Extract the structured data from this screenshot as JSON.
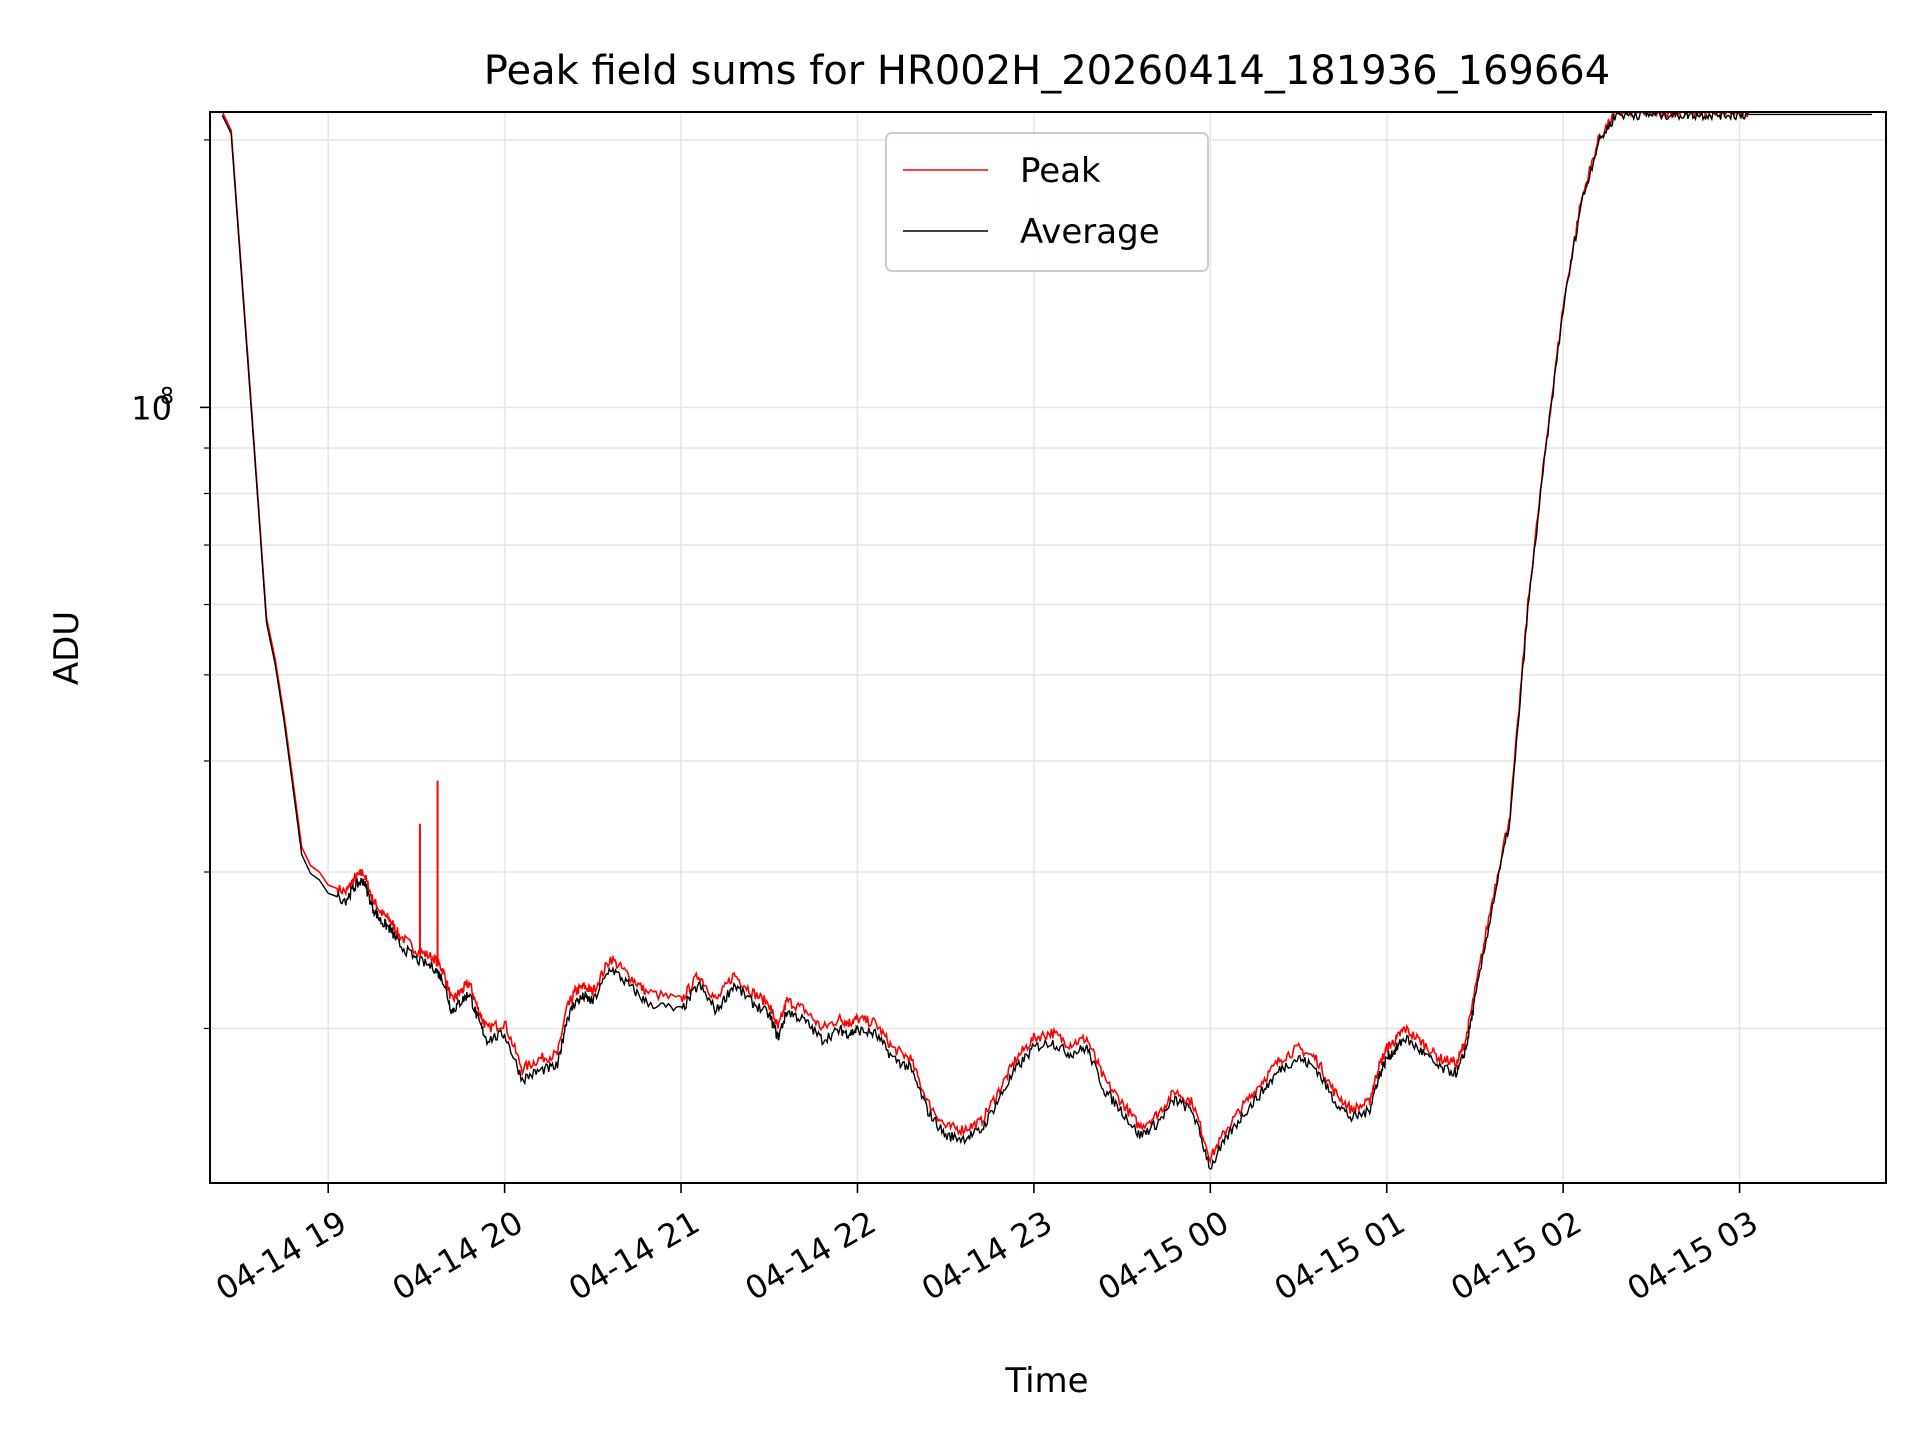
{
  "chart_data": {
    "type": "line",
    "title": "Peak field sums for HR002H_20260414_181936_169664",
    "xlabel": "Time",
    "ylabel": "ADU",
    "y_scale": "log",
    "ylim": [
      13400000,
      215000000
    ],
    "xlim": [
      -0.67,
      8.83
    ],
    "x_unit": "hours since 04-14 19:00",
    "x_tick_values": [
      0,
      1,
      2,
      3,
      4,
      5,
      6,
      7,
      8
    ],
    "x_tick_labels": [
      "04-14 19",
      "04-14 20",
      "04-14 21",
      "04-14 22",
      "04-14 23",
      "04-15 00",
      "04-15 01",
      "04-15 02",
      "04-15 03"
    ],
    "y_major_tick_values": [
      100000000
    ],
    "y_major_tick_labels": [
      {
        "base": "10",
        "exp": "8"
      }
    ],
    "y_minor_tick_values": [
      20000000,
      30000000,
      40000000,
      50000000,
      60000000,
      70000000,
      80000000,
      90000000,
      200000000
    ],
    "grid": true,
    "legend_position": "top-center",
    "colors": {
      "peak": "#ff0000",
      "average": "#000000",
      "grid": "#e6e6e6"
    },
    "spikes": [
      {
        "x": 0.52,
        "y": 34000000
      },
      {
        "x": 0.62,
        "y": 38000000
      }
    ],
    "series": [
      {
        "name": "Peak",
        "color": "#ff0000",
        "x": [
          -0.6,
          -0.55,
          -0.5,
          -0.45,
          -0.4,
          -0.35,
          -0.3,
          -0.25,
          -0.2,
          -0.15,
          -0.1,
          -0.05,
          0,
          0.1,
          0.15,
          0.2,
          0.25,
          0.3,
          0.35,
          0.4,
          0.5,
          0.6,
          0.65,
          0.7,
          0.75,
          0.8,
          0.85,
          0.9,
          1.0,
          1.1,
          1.2,
          1.3,
          1.35,
          1.4,
          1.45,
          1.5,
          1.6,
          1.7,
          1.8,
          2.0,
          2.1,
          2.2,
          2.3,
          2.4,
          2.5,
          2.55,
          2.6,
          2.7,
          2.8,
          2.9,
          2.95,
          3.0,
          3.1,
          3.2,
          3.3,
          3.4,
          3.5,
          3.6,
          3.7,
          3.8,
          3.9,
          4.0,
          4.1,
          4.2,
          4.3,
          4.4,
          4.5,
          4.6,
          4.7,
          4.8,
          4.9,
          5.0,
          5.1,
          5.2,
          5.3,
          5.4,
          5.5,
          5.6,
          5.7,
          5.8,
          5.9,
          5.95,
          6.0,
          6.05,
          6.1,
          6.2,
          6.3,
          6.4,
          6.45,
          6.5,
          6.6,
          6.7,
          6.8,
          6.9,
          7.0,
          7.1,
          7.2,
          7.3,
          7.4,
          7.5,
          7.6,
          7.7,
          7.8,
          7.9,
          8.0,
          8.1,
          8.15,
          8.2,
          8.3,
          8.4,
          8.5,
          8.6,
          8.7,
          8.75
        ],
        "y": [
          215000000,
          205000000,
          150000000,
          110000000,
          80000000,
          58000000,
          52000000,
          45000000,
          38000000,
          32000000,
          30500000,
          30000000,
          29000000,
          28500000,
          29500000,
          30000000,
          28000000,
          27000000,
          26500000,
          25500000,
          24500000,
          24000000,
          23300000,
          21500000,
          22000000,
          22500000,
          21000000,
          20000000,
          20300000,
          18000000,
          18500000,
          18700000,
          21000000,
          22000000,
          22300000,
          22000000,
          24000000,
          23000000,
          22000000,
          21500000,
          23000000,
          21500000,
          23000000,
          22000000,
          21300000,
          20000000,
          21500000,
          21000000,
          20000000,
          20500000,
          20300000,
          20500000,
          20300000,
          19000000,
          18500000,
          16500000,
          15500000,
          15400000,
          15700000,
          17000000,
          18500000,
          19500000,
          19800000,
          19200000,
          19500000,
          17500000,
          16500000,
          15500000,
          16000000,
          17000000,
          16500000,
          14300000,
          15500000,
          16500000,
          17500000,
          18500000,
          19000000,
          18500000,
          17000000,
          16200000,
          16500000,
          18000000,
          19000000,
          19400000,
          20000000,
          19300000,
          18500000,
          18300000,
          19500000,
          22000000,
          28000000,
          35000000,
          60000000,
          90000000,
          130000000,
          170000000,
          200000000,
          215000000,
          215000000,
          215000000,
          215000000,
          215000000,
          215000000,
          215000000,
          215000000,
          215000000,
          215000000,
          215000000,
          215000000,
          215000000,
          215000000,
          215000000,
          215000000,
          215000000
        ]
      },
      {
        "name": "Average",
        "color": "#000000",
        "x": [
          -0.6,
          -0.55,
          -0.5,
          -0.45,
          -0.4,
          -0.35,
          -0.3,
          -0.25,
          -0.2,
          -0.15,
          -0.1,
          -0.05,
          0,
          0.1,
          0.15,
          0.2,
          0.25,
          0.3,
          0.35,
          0.4,
          0.5,
          0.6,
          0.65,
          0.7,
          0.75,
          0.8,
          0.85,
          0.9,
          1.0,
          1.1,
          1.2,
          1.3,
          1.35,
          1.4,
          1.45,
          1.5,
          1.6,
          1.7,
          1.8,
          2.0,
          2.1,
          2.2,
          2.3,
          2.4,
          2.5,
          2.55,
          2.6,
          2.7,
          2.8,
          2.9,
          2.95,
          3.0,
          3.1,
          3.2,
          3.3,
          3.4,
          3.5,
          3.6,
          3.7,
          3.8,
          3.9,
          4.0,
          4.1,
          4.2,
          4.3,
          4.4,
          4.5,
          4.6,
          4.7,
          4.8,
          4.9,
          5.0,
          5.1,
          5.2,
          5.3,
          5.4,
          5.5,
          5.6,
          5.7,
          5.8,
          5.9,
          5.95,
          6.0,
          6.05,
          6.1,
          6.2,
          6.3,
          6.4,
          6.45,
          6.5,
          6.6,
          6.7,
          6.8,
          6.9,
          7.0,
          7.1,
          7.2,
          7.3,
          7.4,
          7.5,
          7.6,
          7.7,
          7.8,
          7.9,
          8.0,
          8.1,
          8.15,
          8.2,
          8.3,
          8.4,
          8.5,
          8.6,
          8.7,
          8.75
        ],
        "y": [
          214000000,
          204000000,
          149000000,
          109000000,
          79500000,
          57500000,
          51500000,
          44500000,
          37500000,
          31500000,
          30000000,
          29500000,
          28500000,
          28000000,
          29000000,
          29500000,
          27500000,
          26500000,
          26000000,
          25000000,
          24000000,
          23500000,
          22800000,
          21000000,
          21500000,
          22000000,
          20500000,
          19500000,
          19800000,
          17600000,
          18000000,
          18200000,
          20500000,
          21500000,
          21800000,
          21500000,
          23500000,
          22500000,
          21500000,
          21000000,
          22500000,
          21000000,
          22500000,
          21500000,
          20800000,
          19600000,
          21000000,
          20500000,
          19500000,
          20000000,
          19800000,
          20000000,
          19800000,
          18600000,
          18100000,
          16200000,
          15200000,
          15100000,
          15400000,
          16700000,
          18100000,
          19100000,
          19400000,
          18800000,
          19100000,
          17100000,
          16200000,
          15200000,
          15700000,
          16700000,
          16200000,
          14000000,
          15200000,
          16200000,
          17100000,
          18100000,
          18600000,
          18100000,
          16700000,
          15900000,
          16200000,
          17600000,
          18600000,
          19000000,
          19600000,
          18900000,
          18100000,
          17900000,
          19100000,
          21600000,
          27600000,
          34500000,
          59500000,
          89500000,
          129500000,
          169500000,
          199500000,
          214500000,
          214500000,
          214500000,
          214500000,
          214500000,
          214500000,
          214500000,
          214500000,
          214500000,
          214500000,
          214500000,
          214500000,
          214500000,
          214500000,
          214500000,
          214500000,
          214500000
        ]
      }
    ]
  }
}
